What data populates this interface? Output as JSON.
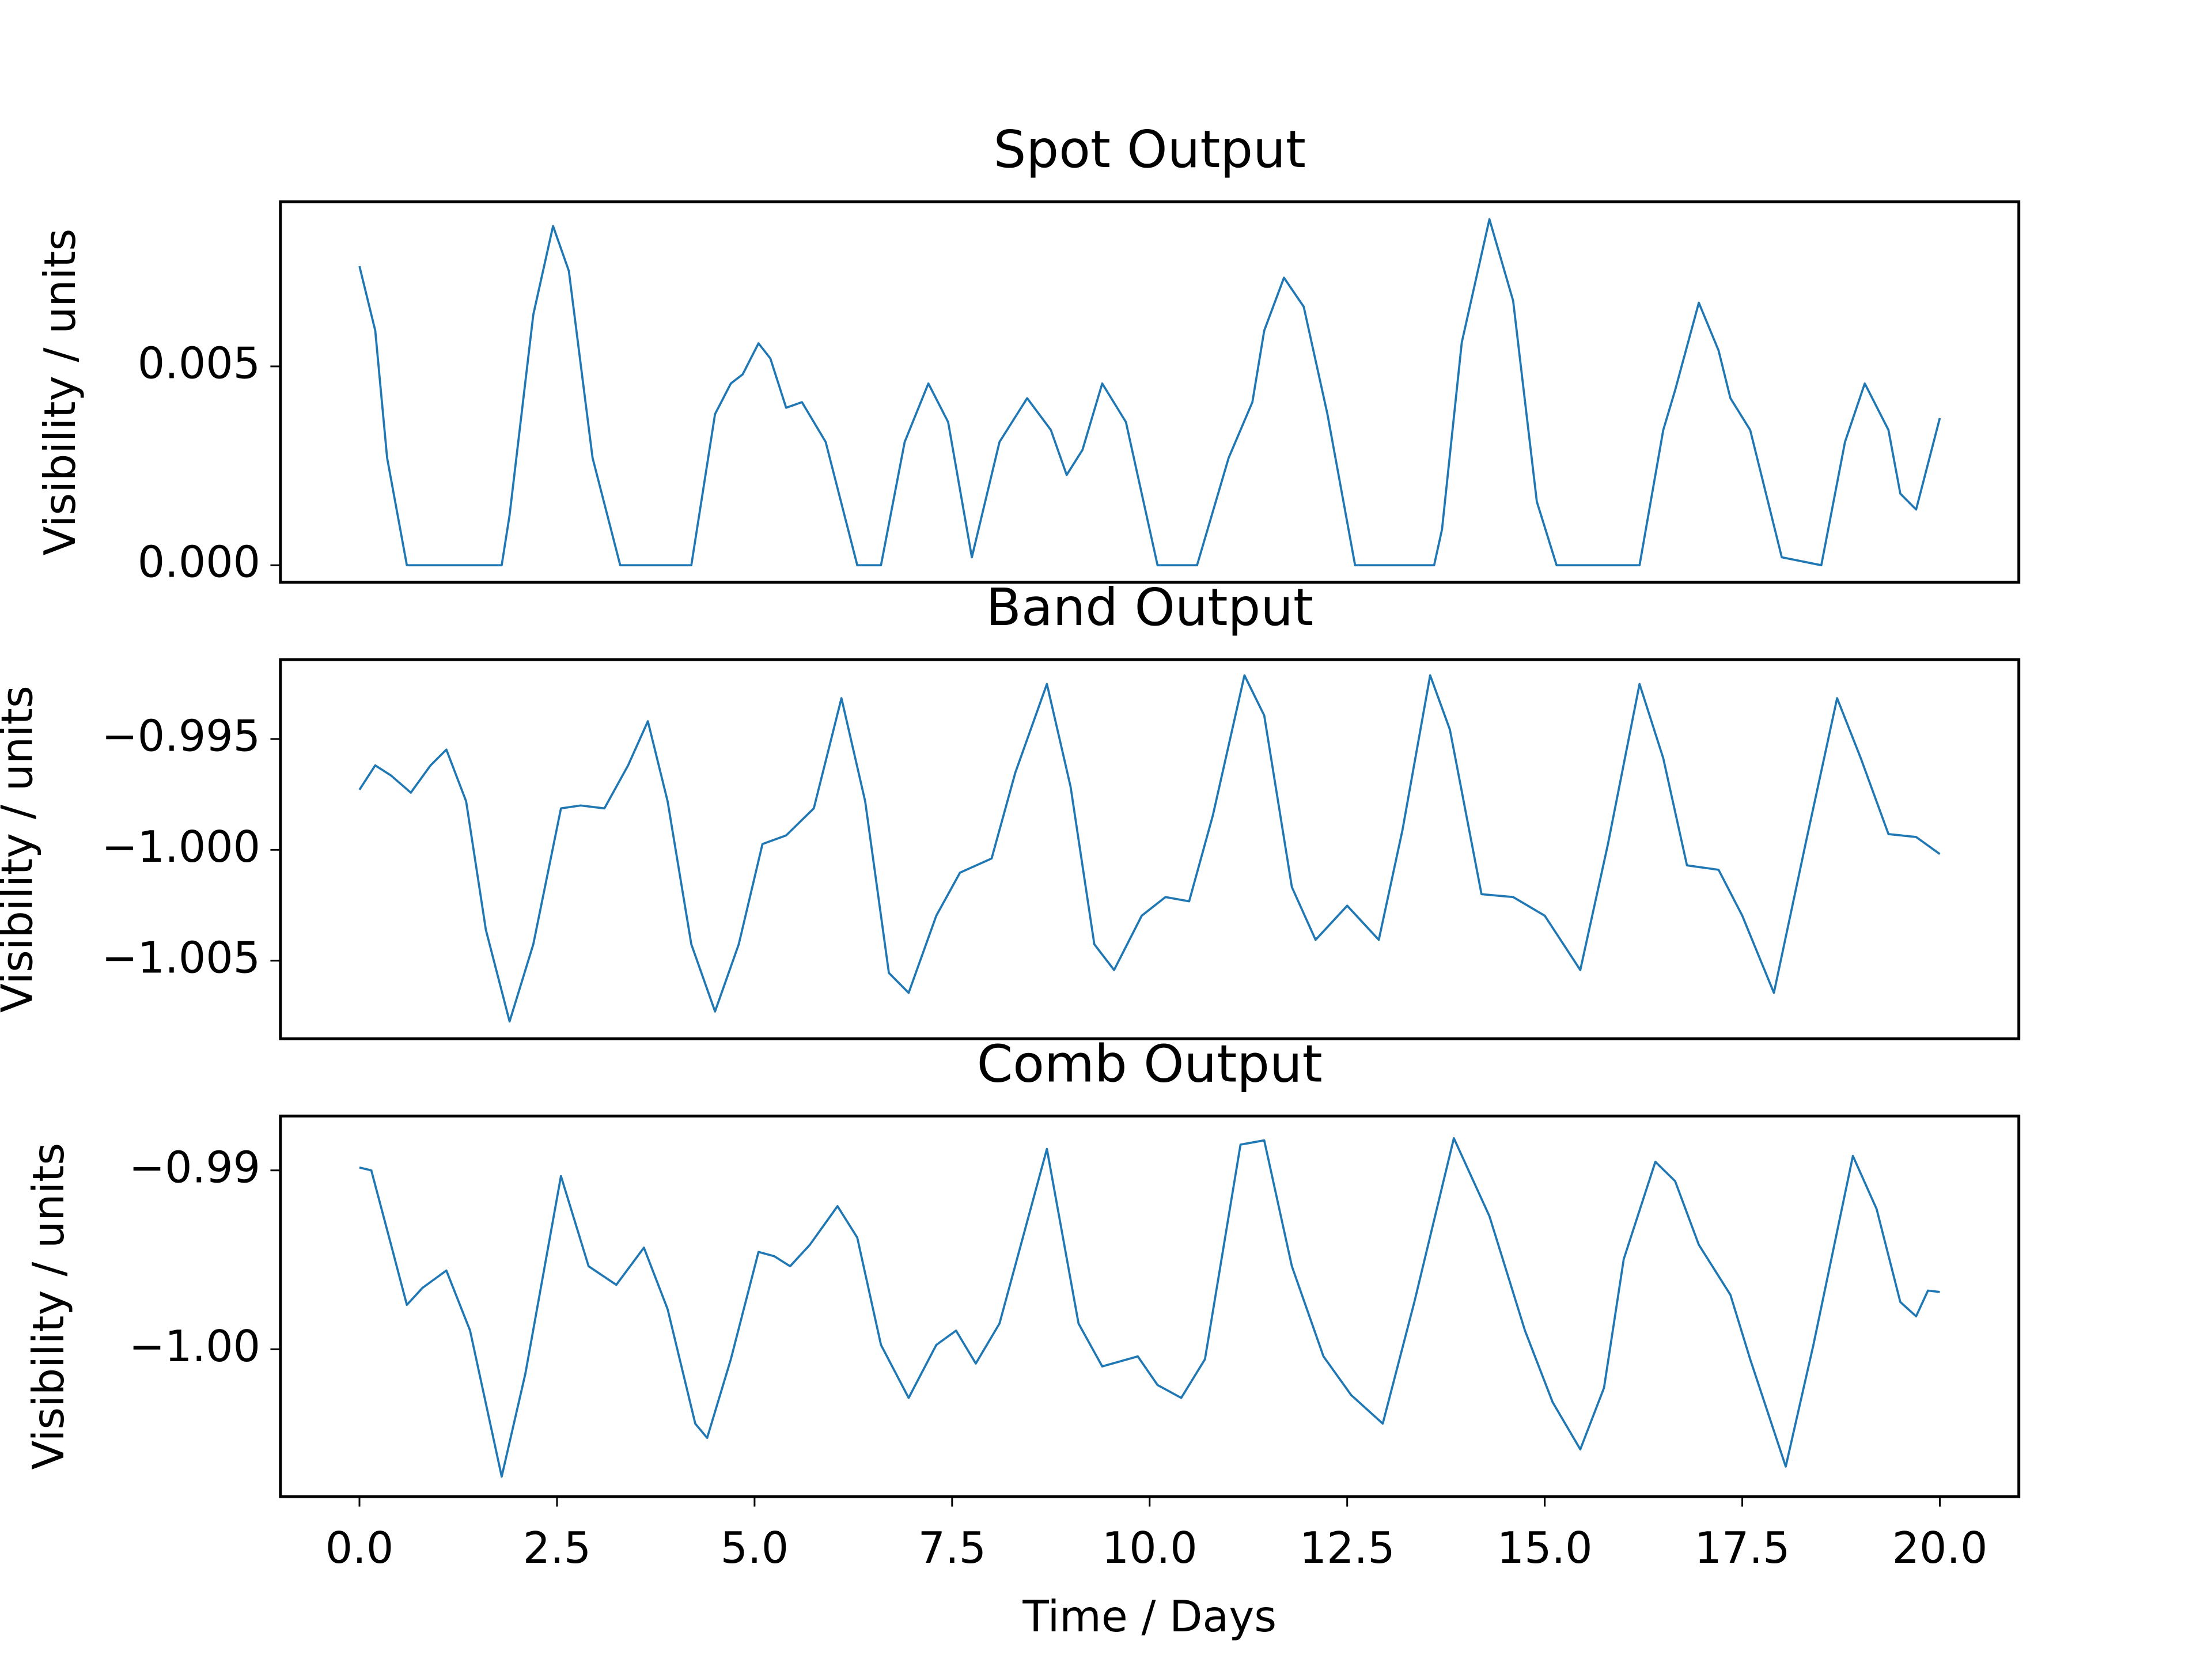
{
  "chart_data": [
    {
      "type": "line",
      "title": "Spot Output",
      "ylabel": "Visibility / units",
      "color": "#1f77b4",
      "xlim": [
        -1.0,
        21.0
      ],
      "ylim": [
        -0.00043,
        0.00914
      ],
      "yticks": [
        {
          "value": 0,
          "label": "0.000"
        },
        {
          "value": 0.005,
          "label": "0.005"
        }
      ],
      "x": [
        0,
        0.2,
        0.35,
        0.6,
        1.8,
        1.9,
        2.2,
        2.45,
        2.65,
        2.95,
        3.3,
        4.2,
        4.5,
        4.7,
        4.85,
        5.05,
        5.2,
        5.4,
        5.6,
        5.9,
        6.3,
        6.6,
        6.9,
        7.2,
        7.45,
        7.75,
        8.1,
        8.45,
        8.75,
        8.95,
        9.15,
        9.4,
        9.7,
        10.1,
        10.6,
        11.0,
        11.3,
        11.45,
        11.7,
        11.95,
        12.25,
        12.6,
        13.6,
        13.7,
        13.95,
        14.3,
        14.6,
        14.9,
        15.15,
        16.2,
        16.5,
        16.65,
        16.95,
        17.2,
        17.35,
        17.6,
        18.0,
        18.5,
        18.8,
        19.05,
        19.35,
        19.5,
        19.7,
        20.0
      ],
      "values": [
        0.00752,
        0.0059,
        0.0027,
        0,
        0,
        0.00126,
        0.0063,
        0.00853,
        0.0074,
        0.0027,
        0,
        0,
        0.0038,
        0.00457,
        0.0048,
        0.00558,
        0.0052,
        0.00396,
        0.0041,
        0.0031,
        0,
        0,
        0.0031,
        0.00457,
        0.0036,
        0.0002,
        0.0031,
        0.0042,
        0.0034,
        0.00227,
        0.0029,
        0.00457,
        0.0036,
        0,
        0,
        0.0027,
        0.0041,
        0.0059,
        0.00723,
        0.0065,
        0.0038,
        0,
        0,
        0.0009,
        0.0056,
        0.0087,
        0.00665,
        0.0016,
        0,
        0,
        0.0034,
        0.0044,
        0.0066,
        0.0054,
        0.0042,
        0.0034,
        0.0002,
        0,
        0.0031,
        0.00457,
        0.0034,
        0.0018,
        0.0014,
        0.0037
      ]
    },
    {
      "type": "line",
      "title": "Band Output",
      "ylabel": "Visibility / units",
      "color": "#1f77b4",
      "xlim": [
        -1.0,
        21.0
      ],
      "ylim": [
        -1.00852,
        -0.99142
      ],
      "yticks": [
        {
          "value": -0.995,
          "label": "−0.995"
        },
        {
          "value": -1.0,
          "label": "−1.000"
        },
        {
          "value": -1.005,
          "label": "−1.005"
        }
      ],
      "x": [
        0,
        0.2,
        0.4,
        0.65,
        0.9,
        1.1,
        1.35,
        1.6,
        1.9,
        2.2,
        2.55,
        2.8,
        3.1,
        3.4,
        3.65,
        3.9,
        4.2,
        4.5,
        4.8,
        5.1,
        5.4,
        5.75,
        6.1,
        6.4,
        6.7,
        6.95,
        7.3,
        7.6,
        8.0,
        8.3,
        8.7,
        9.0,
        9.3,
        9.55,
        9.9,
        10.2,
        10.5,
        10.8,
        11.2,
        11.45,
        11.8,
        12.1,
        12.5,
        12.9,
        13.2,
        13.55,
        13.8,
        14.2,
        14.6,
        15.0,
        15.45,
        15.8,
        16.2,
        16.5,
        16.8,
        17.2,
        17.5,
        17.9,
        18.3,
        18.7,
        19.0,
        19.35,
        19.7,
        20.0
      ],
      "values": [
        -0.99729,
        -0.99619,
        -0.99665,
        -0.99742,
        -0.99619,
        -0.99548,
        -0.99781,
        -1.00361,
        -1.00774,
        -1.00426,
        -0.99813,
        -0.998,
        -0.99813,
        -0.99619,
        -0.9942,
        -0.99781,
        -1.00426,
        -1.00729,
        -1.00426,
        -0.99974,
        -0.99935,
        -0.99813,
        -0.99316,
        -0.99781,
        -1.00555,
        -1.00645,
        -1.00297,
        -1.00103,
        -1.00039,
        -0.99652,
        -0.99252,
        -0.99716,
        -1.00426,
        -1.00542,
        -1.00297,
        -1.00213,
        -1.00232,
        -0.99845,
        -0.99213,
        -0.99394,
        -1.00168,
        -1.00406,
        -1.00252,
        -1.00406,
        -0.9991,
        -0.99213,
        -0.99458,
        -1.002,
        -1.00213,
        -1.00297,
        -1.00542,
        -0.99974,
        -0.99252,
        -0.99587,
        -1.0007,
        -1.0009,
        -1.00297,
        -1.00645,
        -0.99974,
        -0.99316,
        -0.99587,
        -0.99929,
        -0.99942,
        -1.00019
      ]
    },
    {
      "type": "line",
      "title": "Comb Output",
      "ylabel": "Visibility / units",
      "xlabel": "Time / Days",
      "color": "#1f77b4",
      "xlim": [
        -1.0,
        21.0
      ],
      "ylim": [
        -1.00824,
        -0.98696
      ],
      "xticks": [
        {
          "value": 0,
          "label": "0.0"
        },
        {
          "value": 2.5,
          "label": "2.5"
        },
        {
          "value": 5,
          "label": "5.0"
        },
        {
          "value": 7.5,
          "label": "7.5"
        },
        {
          "value": 10,
          "label": "10.0"
        },
        {
          "value": 12.5,
          "label": "12.5"
        },
        {
          "value": 15,
          "label": "15.0"
        },
        {
          "value": 17.5,
          "label": "17.5"
        },
        {
          "value": 20,
          "label": "20.0"
        }
      ],
      "yticks": [
        {
          "value": -0.99,
          "label": "−0.99"
        },
        {
          "value": -1.0,
          "label": "−1.00"
        }
      ],
      "x": [
        0,
        0.15,
        0.4,
        0.6,
        0.8,
        1.1,
        1.4,
        1.8,
        2.1,
        2.55,
        2.9,
        3.25,
        3.6,
        3.9,
        4.25,
        4.4,
        4.7,
        5.05,
        5.25,
        5.45,
        5.7,
        6.05,
        6.3,
        6.6,
        6.95,
        7.3,
        7.55,
        7.8,
        8.1,
        8.7,
        9.1,
        9.4,
        9.85,
        10.1,
        10.4,
        10.7,
        11.15,
        11.45,
        11.8,
        12.2,
        12.55,
        12.95,
        13.35,
        13.85,
        14.3,
        14.75,
        15.1,
        15.45,
        15.75,
        16.0,
        16.4,
        16.65,
        16.95,
        17.35,
        17.6,
        18.05,
        18.4,
        18.9,
        19.2,
        19.5,
        19.7,
        19.85,
        20.0
      ],
      "values": [
        -0.98984,
        -0.99,
        -0.99416,
        -0.99752,
        -0.99656,
        -0.9956,
        -0.99896,
        -1.00712,
        -1.00136,
        -0.99032,
        -0.99536,
        -0.9964,
        -0.99432,
        -0.99776,
        -1.00416,
        -1.00496,
        -1.00056,
        -0.99456,
        -0.9948,
        -0.99536,
        -0.99416,
        -0.992,
        -0.99376,
        -0.99976,
        -1.00272,
        -0.99976,
        -0.99896,
        -1.0008,
        -0.99856,
        -0.9888,
        -0.99856,
        -1.00096,
        -1.0004,
        -1.002,
        -1.00272,
        -1.00056,
        -0.98856,
        -0.98832,
        -0.99536,
        -1.0004,
        -1.00256,
        -1.00416,
        -0.99736,
        -0.9882,
        -0.99256,
        -0.99896,
        -1.00296,
        -1.0056,
        -1.00216,
        -0.99496,
        -0.98952,
        -0.9906,
        -0.99416,
        -0.99696,
        -1.00056,
        -1.00656,
        -0.99976,
        -0.98919,
        -0.99216,
        -0.99736,
        -0.99816,
        -0.99672,
        -0.9968
      ]
    }
  ]
}
